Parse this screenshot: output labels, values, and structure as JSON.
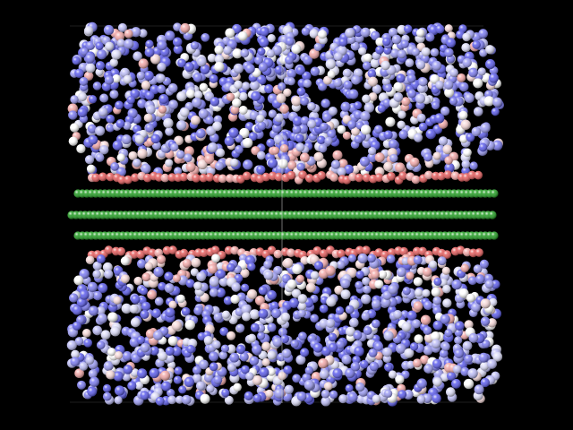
{
  "scene": {
    "background_color": "#000000",
    "box_line_color": "#1e1e1e",
    "divider_color": "#cfcfcf",
    "green_atom_color": "#1e9a1e",
    "interface_atom_color": "#e35a5a",
    "palette": [
      "#5a5aeb",
      "#7a7af0",
      "#9a9af2",
      "#bcbcf6",
      "#dcdcf8",
      "#ffffff",
      "#f6d8d8",
      "#f2a7a7"
    ],
    "green_rows": 3
  }
}
